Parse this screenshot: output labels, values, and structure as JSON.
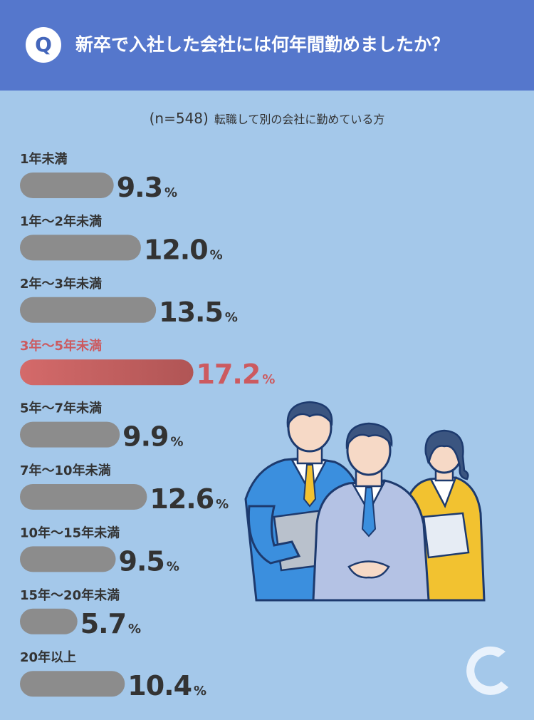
{
  "header": {
    "badge": "Q",
    "question": "新卒で入社した会社には何年間勤めましたか？"
  },
  "subtitle": {
    "sample": "(n=548)",
    "description": "転職して別の会社に勤めている方"
  },
  "chart_data": {
    "type": "bar",
    "orientation": "horizontal",
    "unit": "%",
    "categories": [
      "1年未満",
      "1年〜2年未満",
      "2年〜3年未満",
      "3年〜5年未満",
      "5年〜7年未満",
      "7年〜10年未満",
      "10年〜15年未満",
      "15年〜20年未満",
      "20年以上"
    ],
    "values": [
      9.3,
      12.0,
      13.5,
      17.2,
      9.9,
      12.6,
      9.5,
      5.7,
      10.4
    ],
    "display_values": [
      "9.3",
      "12.0",
      "13.5",
      "17.2",
      "9.9",
      "12.6",
      "9.5",
      "5.7",
      "10.4"
    ],
    "highlight_index": 3,
    "colors": {
      "bar": "#8c8c8c",
      "highlight_start": "#d46a6a",
      "highlight_end": "#b05555",
      "text": "#333333",
      "highlight_text": "#cc5a5f"
    }
  }
}
